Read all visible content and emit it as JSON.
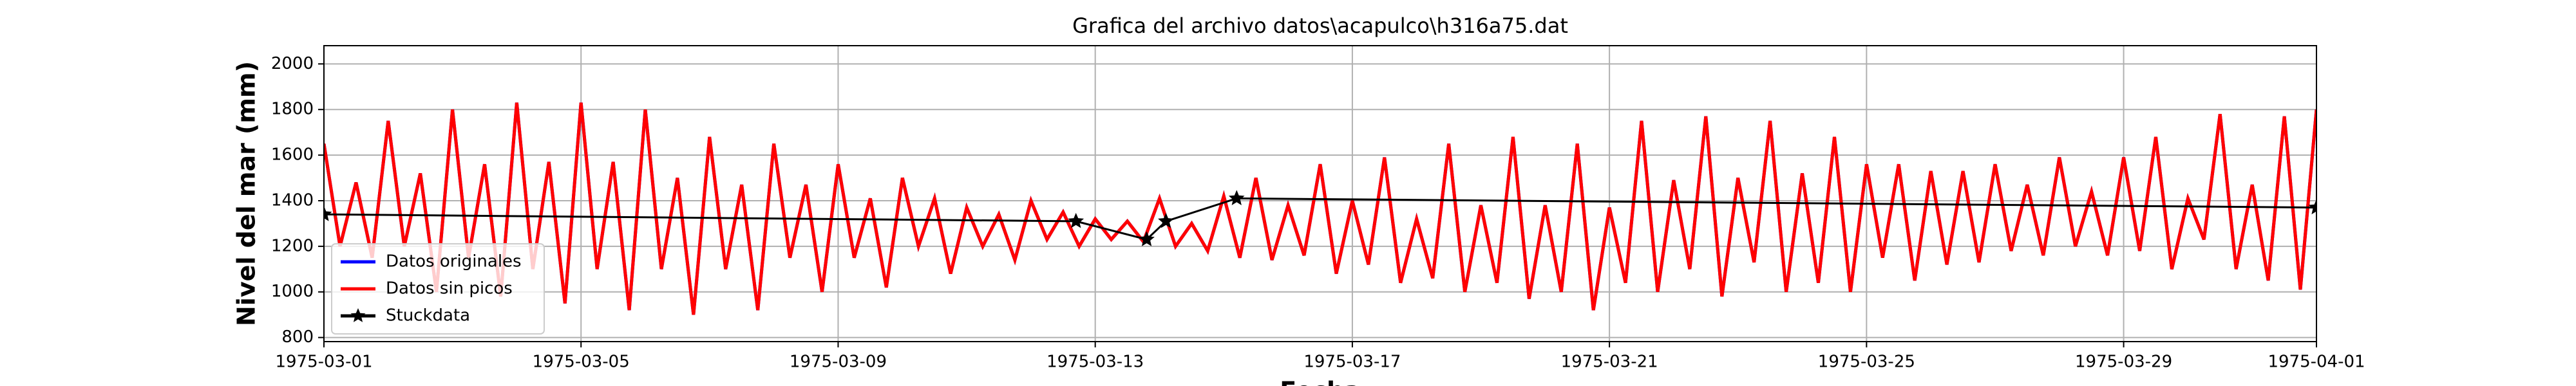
{
  "chart_data": {
    "type": "line",
    "title": "Grafica del archivo datos\\acapulco\\h316a75.dat",
    "xlabel": "Fecha",
    "ylabel": "Nivel del mar (mm)",
    "x": [
      0,
      0.25,
      0.5,
      0.75,
      1,
      1.25,
      1.5,
      1.75,
      2,
      2.25,
      2.5,
      2.75,
      3,
      3.25,
      3.5,
      3.75,
      4,
      4.25,
      4.5,
      4.75,
      5,
      5.25,
      5.5,
      5.75,
      6,
      6.25,
      6.5,
      6.75,
      7,
      7.25,
      7.5,
      7.75,
      8,
      8.25,
      8.5,
      8.75,
      9,
      9.25,
      9.5,
      9.75,
      10,
      10.25,
      10.5,
      10.75,
      11,
      11.25,
      11.5,
      11.75,
      12,
      12.25,
      12.5,
      12.75,
      13,
      13.25,
      13.5,
      13.75,
      14,
      14.25,
      14.5,
      14.75,
      15,
      15.25,
      15.5,
      15.75,
      16,
      16.25,
      16.5,
      16.75,
      17,
      17.25,
      17.5,
      17.75,
      18,
      18.25,
      18.5,
      18.75,
      19,
      19.25,
      19.5,
      19.75,
      20,
      20.25,
      20.5,
      20.75,
      21,
      21.25,
      21.5,
      21.75,
      22,
      22.25,
      22.5,
      22.75,
      23,
      23.25,
      23.5,
      23.75,
      24,
      24.25,
      24.5,
      24.75,
      25,
      25.25,
      25.5,
      25.75,
      26,
      26.25,
      26.5,
      26.75,
      27,
      27.25,
      27.5,
      27.75,
      28,
      28.25,
      28.5,
      28.75,
      29,
      29.25,
      29.5,
      29.75,
      30,
      30.25,
      30.5,
      30.75,
      31
    ],
    "series": [
      {
        "name": "Datos originales",
        "color": "#0000ff",
        "values": [
          1650,
          1200,
          1480,
          1150,
          1750,
          1200,
          1520,
          1000,
          1800,
          1150,
          1560,
          980,
          1830,
          1100,
          1570,
          950,
          1830,
          1100,
          1570,
          920,
          1800,
          1100,
          1500,
          900,
          1680,
          1100,
          1470,
          920,
          1650,
          1150,
          1470,
          1000,
          1560,
          1150,
          1410,
          1020,
          1500,
          1200,
          1410,
          1080,
          1370,
          1200,
          1340,
          1140,
          1400,
          1230,
          1350,
          1200,
          1320,
          1230,
          1310,
          1220,
          1410,
          1200,
          1300,
          1180,
          1420,
          1150,
          1500,
          1140,
          1380,
          1160,
          1560,
          1080,
          1400,
          1120,
          1590,
          1040,
          1320,
          1060,
          1650,
          1000,
          1380,
          1040,
          1680,
          970,
          1380,
          1000,
          1650,
          920,
          1370,
          1040,
          1750,
          1000,
          1490,
          1100,
          1770,
          980,
          1500,
          1130,
          1750,
          1000,
          1520,
          1040,
          1680,
          1000,
          1560,
          1150,
          1560,
          1050,
          1530,
          1120,
          1530,
          1130,
          1560,
          1180,
          1470,
          1160,
          1590,
          1200,
          1440,
          1160,
          1590,
          1180,
          1680,
          1100,
          1410,
          1230,
          1780,
          1100,
          1470,
          1050,
          1770,
          1010,
          1800
        ]
      },
      {
        "name": "Datos sin picos",
        "color": "#ff0000",
        "values": [
          1650,
          1200,
          1480,
          1150,
          1750,
          1200,
          1520,
          1000,
          1800,
          1150,
          1560,
          980,
          1830,
          1100,
          1570,
          950,
          1830,
          1100,
          1570,
          920,
          1800,
          1100,
          1500,
          900,
          1680,
          1100,
          1470,
          920,
          1650,
          1150,
          1470,
          1000,
          1560,
          1150,
          1410,
          1020,
          1500,
          1200,
          1410,
          1080,
          1370,
          1200,
          1340,
          1140,
          1400,
          1230,
          1350,
          1200,
          1320,
          1230,
          1310,
          1220,
          1410,
          1200,
          1300,
          1180,
          1420,
          1150,
          1500,
          1140,
          1380,
          1160,
          1560,
          1080,
          1400,
          1120,
          1590,
          1040,
          1320,
          1060,
          1650,
          1000,
          1380,
          1040,
          1680,
          970,
          1380,
          1000,
          1650,
          920,
          1370,
          1040,
          1750,
          1000,
          1490,
          1100,
          1770,
          980,
          1500,
          1130,
          1750,
          1000,
          1520,
          1040,
          1680,
          1000,
          1560,
          1150,
          1560,
          1050,
          1530,
          1120,
          1530,
          1130,
          1560,
          1180,
          1470,
          1160,
          1590,
          1200,
          1440,
          1160,
          1590,
          1180,
          1680,
          1100,
          1410,
          1230,
          1780,
          1100,
          1470,
          1050,
          1770,
          1010,
          1800
        ]
      },
      {
        "name": "Stuckdata",
        "color": "#000000",
        "marker": "star",
        "x": [
          0,
          11.7,
          12.8,
          13.1,
          14.2,
          31
        ],
        "values": [
          1340,
          1310,
          1230,
          1310,
          1410,
          1370
        ]
      }
    ],
    "xlim": [
      0,
      31
    ],
    "xticks": [
      {
        "value": 0,
        "label": "1975-03-01"
      },
      {
        "value": 4,
        "label": "1975-03-05"
      },
      {
        "value": 8,
        "label": "1975-03-09"
      },
      {
        "value": 12,
        "label": "1975-03-13"
      },
      {
        "value": 16,
        "label": "1975-03-17"
      },
      {
        "value": 20,
        "label": "1975-03-21"
      },
      {
        "value": 24,
        "label": "1975-03-25"
      },
      {
        "value": 28,
        "label": "1975-03-29"
      },
      {
        "value": 31,
        "label": "1975-04-01"
      }
    ],
    "ylim": [
      782,
      2080
    ],
    "yticks": [
      800,
      1000,
      1200,
      1400,
      1600,
      1800,
      2000
    ],
    "grid": true,
    "legend": "lower left"
  }
}
